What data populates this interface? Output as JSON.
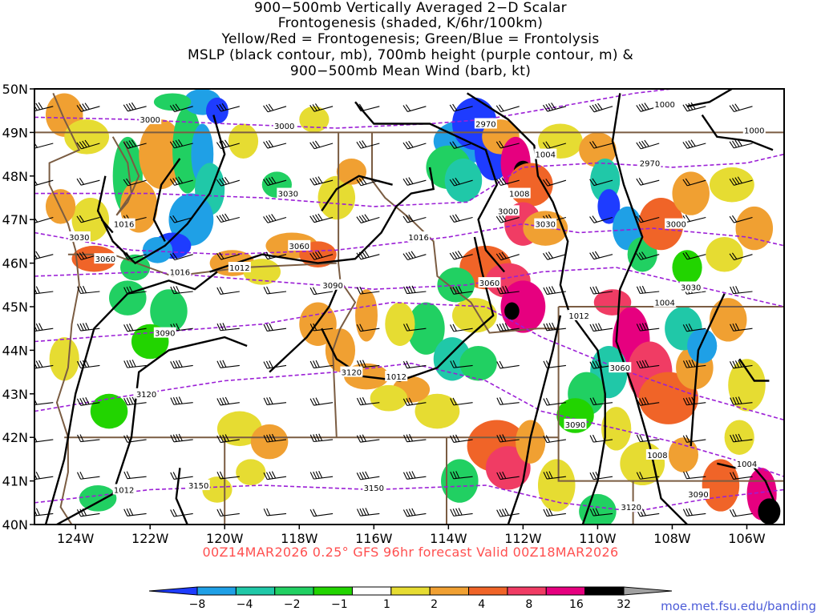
{
  "title_lines": [
    "900−500mb Vertically Averaged 2−D Scalar",
    "Frontogenesis (shaded, K/6hr/100km)",
    "Yellow/Red = Frontogenesis;  Green/Blue = Frontolysis",
    "MSLP (black contour, mb), 700mb height (purple contour, m) &",
    "900−500mb Mean Wind (barb, kt)"
  ],
  "subtitle": "00Z14MAR2026 0.25° GFS 96hr forecast Valid 00Z18MAR2026",
  "url": "moe.met.fsu.edu/banding",
  "lat_labels": [
    "50N",
    "49N",
    "48N",
    "47N",
    "46N",
    "45N",
    "44N",
    "43N",
    "42N",
    "41N",
    "40N"
  ],
  "lon_labels": [
    "124W",
    "122W",
    "120W",
    "118W",
    "116W",
    "114W",
    "112W",
    "110W",
    "108W",
    "106W"
  ],
  "colorbar": {
    "labels": [
      "−8",
      "−4",
      "−2",
      "−1",
      "1",
      "2",
      "4",
      "8",
      "16",
      "32"
    ],
    "colors": [
      "#1e3cff",
      "#1fa0e6",
      "#20c8a8",
      "#21d062",
      "#22d400",
      "#ffffff",
      "#e6dc32",
      "#f0a032",
      "#f06428",
      "#f03c64",
      "#e6007f",
      "#000000",
      "#a0a0a0"
    ]
  },
  "mslp_labels": [
    {
      "text": "1016",
      "lon": -122.7,
      "lat": 46.9
    },
    {
      "text": "1016",
      "lon": -121.2,
      "lat": 45.8
    },
    {
      "text": "1012",
      "lon": -119.6,
      "lat": 45.9
    },
    {
      "text": "1016",
      "lon": -114.8,
      "lat": 46.6
    },
    {
      "text": "1012",
      "lon": -115.4,
      "lat": 43.4
    },
    {
      "text": "1008",
      "lon": -112.1,
      "lat": 47.6
    },
    {
      "text": "1004",
      "lon": -111.4,
      "lat": 48.5
    },
    {
      "text": "1000",
      "lon": -108.2,
      "lat": 49.65
    },
    {
      "text": "1000",
      "lon": -105.8,
      "lat": 49.05
    },
    {
      "text": "1004",
      "lon": -108.2,
      "lat": 45.1
    },
    {
      "text": "1012",
      "lon": -110.5,
      "lat": 44.8
    },
    {
      "text": "1008",
      "lon": -108.4,
      "lat": 41.6
    },
    {
      "text": "1004",
      "lon": -106.0,
      "lat": 41.4
    },
    {
      "text": "1012",
      "lon": -122.7,
      "lat": 40.8
    }
  ],
  "hgt_labels": [
    {
      "text": "3000",
      "lon": -122.0,
      "lat": 49.3
    },
    {
      "text": "3000",
      "lon": -118.4,
      "lat": 49.15
    },
    {
      "text": "2970",
      "lon": -113.0,
      "lat": 49.2
    },
    {
      "text": "2970",
      "lon": -108.6,
      "lat": 48.3
    },
    {
      "text": "3000",
      "lon": -112.4,
      "lat": 47.2
    },
    {
      "text": "3030",
      "lon": -111.4,
      "lat": 46.9
    },
    {
      "text": "3000",
      "lon": -107.9,
      "lat": 46.9
    },
    {
      "text": "3030",
      "lon": -118.3,
      "lat": 47.6
    },
    {
      "text": "3030",
      "lon": -123.9,
      "lat": 46.6
    },
    {
      "text": "3060",
      "lon": -123.2,
      "lat": 46.1
    },
    {
      "text": "3060",
      "lon": -118.0,
      "lat": 46.4
    },
    {
      "text": "3090",
      "lon": -117.1,
      "lat": 45.5
    },
    {
      "text": "3060",
      "lon": -112.9,
      "lat": 45.55
    },
    {
      "text": "3030",
      "lon": -107.5,
      "lat": 45.45
    },
    {
      "text": "3090",
      "lon": -121.6,
      "lat": 44.4
    },
    {
      "text": "3120",
      "lon": -116.6,
      "lat": 43.5
    },
    {
      "text": "3060",
      "lon": -109.4,
      "lat": 43.6
    },
    {
      "text": "3120",
      "lon": -122.1,
      "lat": 43.0
    },
    {
      "text": "3090",
      "lon": -110.6,
      "lat": 42.3
    },
    {
      "text": "3150",
      "lon": -120.7,
      "lat": 40.9
    },
    {
      "text": "3150",
      "lon": -116.0,
      "lat": 40.85
    },
    {
      "text": "3120",
      "lon": -109.1,
      "lat": 40.4
    },
    {
      "text": "3090",
      "lon": -107.3,
      "lat": 40.7
    }
  ]
}
